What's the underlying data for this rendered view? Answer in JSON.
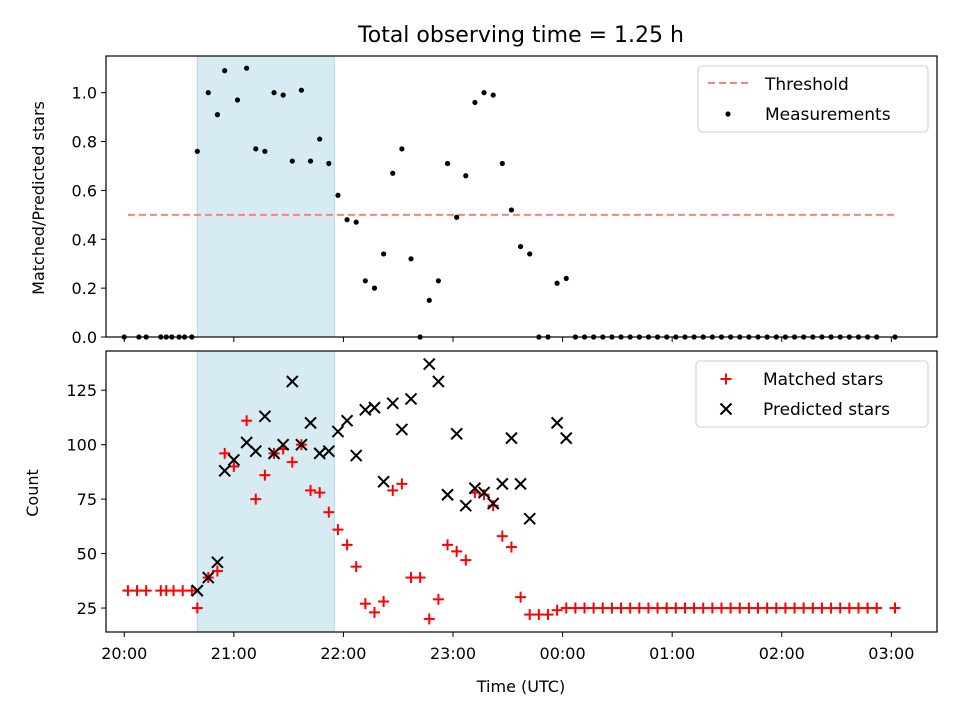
{
  "chart_data": [
    {
      "type": "scatter",
      "title": "Total observing time = 1.25 h",
      "xlabel": "",
      "ylabel": "Matched/Predicted stars",
      "xlim": [
        "19:50",
        "03:25"
      ],
      "ylim": [
        0,
        1.15
      ],
      "yticks": [
        "0.0",
        "0.2",
        "0.4",
        "0.6",
        "0.8",
        "1.0"
      ],
      "shaded_interval": {
        "start": "20:40",
        "end": "21:55",
        "color": "#add8e6"
      },
      "legend": {
        "position": "top-right",
        "entries": [
          "Threshold",
          "Measurements"
        ]
      },
      "threshold": {
        "name": "Threshold",
        "value": 0.5,
        "x_start": "20:02",
        "x_end": "03:02",
        "color": "#ff7f7f"
      },
      "series": [
        {
          "name": "Measurements",
          "color": "#000000",
          "marker": "dot",
          "points": [
            [
              "20:00",
              0
            ],
            [
              "20:08",
              0
            ],
            [
              "20:12",
              0
            ],
            [
              "20:20",
              0
            ],
            [
              "20:23",
              0
            ],
            [
              "20:26",
              0
            ],
            [
              "20:30",
              0
            ],
            [
              "20:33",
              0
            ],
            [
              "20:37",
              0
            ],
            [
              "20:40",
              0.76
            ],
            [
              "20:46",
              1.0
            ],
            [
              "20:51",
              0.91
            ],
            [
              "20:55",
              1.09
            ],
            [
              "21:02",
              0.97
            ],
            [
              "21:07",
              1.1
            ],
            [
              "21:12",
              0.77
            ],
            [
              "21:17",
              0.76
            ],
            [
              "21:22",
              1.0
            ],
            [
              "21:27",
              0.99
            ],
            [
              "21:32",
              0.72
            ],
            [
              "21:37",
              1.01
            ],
            [
              "21:42",
              0.72
            ],
            [
              "21:47",
              0.81
            ],
            [
              "21:52",
              0.71
            ],
            [
              "21:57",
              0.58
            ],
            [
              "22:02",
              0.48
            ],
            [
              "22:07",
              0.47
            ],
            [
              "22:12",
              0.23
            ],
            [
              "22:17",
              0.2
            ],
            [
              "22:22",
              0.34
            ],
            [
              "22:27",
              0.67
            ],
            [
              "22:32",
              0.77
            ],
            [
              "22:37",
              0.32
            ],
            [
              "22:42",
              0.0
            ],
            [
              "22:47",
              0.15
            ],
            [
              "22:52",
              0.23
            ],
            [
              "22:57",
              0.71
            ],
            [
              "23:02",
              0.49
            ],
            [
              "23:07",
              0.66
            ],
            [
              "23:12",
              0.96
            ],
            [
              "23:17",
              1.0
            ],
            [
              "23:22",
              0.99
            ],
            [
              "23:27",
              0.71
            ],
            [
              "23:32",
              0.52
            ],
            [
              "23:37",
              0.37
            ],
            [
              "23:42",
              0.34
            ],
            [
              "23:47",
              0.0
            ],
            [
              "23:52",
              0.0
            ],
            [
              "23:57",
              0.22
            ],
            [
              "00:02",
              0.24
            ],
            [
              "00:07",
              0
            ],
            [
              "00:12",
              0
            ],
            [
              "00:17",
              0
            ],
            [
              "00:22",
              0
            ],
            [
              "00:27",
              0
            ],
            [
              "00:32",
              0
            ],
            [
              "00:37",
              0
            ],
            [
              "00:42",
              0
            ],
            [
              "00:47",
              0
            ],
            [
              "00:52",
              0
            ],
            [
              "00:57",
              0
            ],
            [
              "01:02",
              0
            ],
            [
              "01:07",
              0
            ],
            [
              "01:12",
              0
            ],
            [
              "01:17",
              0
            ],
            [
              "01:22",
              0
            ],
            [
              "01:27",
              0
            ],
            [
              "01:32",
              0
            ],
            [
              "01:37",
              0
            ],
            [
              "01:42",
              0
            ],
            [
              "01:47",
              0
            ],
            [
              "01:52",
              0
            ],
            [
              "01:57",
              0
            ],
            [
              "02:02",
              0
            ],
            [
              "02:07",
              0
            ],
            [
              "02:12",
              0
            ],
            [
              "02:17",
              0
            ],
            [
              "02:22",
              0
            ],
            [
              "02:27",
              0
            ],
            [
              "02:32",
              0
            ],
            [
              "02:37",
              0
            ],
            [
              "02:42",
              0
            ],
            [
              "02:47",
              0
            ],
            [
              "02:52",
              0
            ],
            [
              "03:02",
              0
            ]
          ]
        }
      ]
    },
    {
      "type": "scatter",
      "title": "",
      "xlabel": "Time (UTC)",
      "ylabel": "Count",
      "xlim": [
        "19:50",
        "03:25"
      ],
      "ylim": [
        14,
        143
      ],
      "xticks": [
        "20:00",
        "21:00",
        "22:00",
        "23:00",
        "00:00",
        "01:00",
        "02:00",
        "03:00"
      ],
      "yticks": [
        "25",
        "50",
        "75",
        "100",
        "125"
      ],
      "shaded_interval": {
        "start": "20:40",
        "end": "21:55",
        "color": "#add8e6"
      },
      "legend": {
        "position": "top-right",
        "entries": [
          "Matched stars",
          "Predicted stars"
        ]
      },
      "series": [
        {
          "name": "Matched stars",
          "color": "#ff0000",
          "marker": "plus",
          "points": [
            [
              "20:02",
              33
            ],
            [
              "20:07",
              33
            ],
            [
              "20:12",
              33
            ],
            [
              "20:20",
              33
            ],
            [
              "20:23",
              33
            ],
            [
              "20:27",
              33
            ],
            [
              "20:32",
              33
            ],
            [
              "20:37",
              33
            ],
            [
              "20:40",
              25
            ],
            [
              "20:46",
              39
            ],
            [
              "20:51",
              42
            ],
            [
              "20:55",
              96
            ],
            [
              "21:00",
              90
            ],
            [
              "21:07",
              111
            ],
            [
              "21:12",
              75
            ],
            [
              "21:17",
              86
            ],
            [
              "21:22",
              96
            ],
            [
              "21:27",
              98
            ],
            [
              "21:32",
              92
            ],
            [
              "21:37",
              100
            ],
            [
              "21:42",
              79
            ],
            [
              "21:47",
              78
            ],
            [
              "21:52",
              69
            ],
            [
              "21:57",
              61
            ],
            [
              "22:02",
              54
            ],
            [
              "22:07",
              44
            ],
            [
              "22:12",
              27
            ],
            [
              "22:17",
              23
            ],
            [
              "22:22",
              28
            ],
            [
              "22:27",
              79
            ],
            [
              "22:32",
              82
            ],
            [
              "22:37",
              39
            ],
            [
              "22:42",
              39
            ],
            [
              "22:47",
              20
            ],
            [
              "22:52",
              29
            ],
            [
              "22:57",
              54
            ],
            [
              "23:02",
              51
            ],
            [
              "23:07",
              47
            ],
            [
              "23:12",
              78
            ],
            [
              "23:17",
              77
            ],
            [
              "23:22",
              72
            ],
            [
              "23:27",
              58
            ],
            [
              "23:32",
              53
            ],
            [
              "23:37",
              30
            ],
            [
              "23:42",
              22
            ],
            [
              "23:47",
              22
            ],
            [
              "23:52",
              22
            ],
            [
              "23:57",
              24
            ],
            [
              "00:02",
              25
            ],
            [
              "00:07",
              25
            ],
            [
              "00:12",
              25
            ],
            [
              "00:17",
              25
            ],
            [
              "00:22",
              25
            ],
            [
              "00:27",
              25
            ],
            [
              "00:32",
              25
            ],
            [
              "00:37",
              25
            ],
            [
              "00:42",
              25
            ],
            [
              "00:47",
              25
            ],
            [
              "00:52",
              25
            ],
            [
              "00:57",
              25
            ],
            [
              "01:02",
              25
            ],
            [
              "01:07",
              25
            ],
            [
              "01:12",
              25
            ],
            [
              "01:17",
              25
            ],
            [
              "01:22",
              25
            ],
            [
              "01:27",
              25
            ],
            [
              "01:32",
              25
            ],
            [
              "01:37",
              25
            ],
            [
              "01:42",
              25
            ],
            [
              "01:47",
              25
            ],
            [
              "01:52",
              25
            ],
            [
              "01:57",
              25
            ],
            [
              "02:02",
              25
            ],
            [
              "02:07",
              25
            ],
            [
              "02:12",
              25
            ],
            [
              "02:17",
              25
            ],
            [
              "02:22",
              25
            ],
            [
              "02:27",
              25
            ],
            [
              "02:32",
              25
            ],
            [
              "02:37",
              25
            ],
            [
              "02:42",
              25
            ],
            [
              "02:47",
              25
            ],
            [
              "02:52",
              25
            ],
            [
              "03:02",
              25
            ]
          ]
        },
        {
          "name": "Predicted stars",
          "color": "#000000",
          "marker": "x",
          "points": [
            [
              "20:40",
              33
            ],
            [
              "20:46",
              39
            ],
            [
              "20:51",
              46
            ],
            [
              "20:55",
              88
            ],
            [
              "21:00",
              93
            ],
            [
              "21:07",
              101
            ],
            [
              "21:12",
              97
            ],
            [
              "21:17",
              113
            ],
            [
              "21:22",
              96
            ],
            [
              "21:27",
              100
            ],
            [
              "21:32",
              129
            ],
            [
              "21:37",
              100
            ],
            [
              "21:42",
              110
            ],
            [
              "21:47",
              96
            ],
            [
              "21:52",
              97
            ],
            [
              "21:57",
              106
            ],
            [
              "22:02",
              111
            ],
            [
              "22:07",
              95
            ],
            [
              "22:12",
              116
            ],
            [
              "22:17",
              117
            ],
            [
              "22:22",
              83
            ],
            [
              "22:27",
              119
            ],
            [
              "22:32",
              107
            ],
            [
              "22:37",
              121
            ],
            [
              "22:47",
              137
            ],
            [
              "22:52",
              129
            ],
            [
              "22:57",
              77
            ],
            [
              "23:02",
              105
            ],
            [
              "23:07",
              72
            ],
            [
              "23:12",
              80
            ],
            [
              "23:17",
              78
            ],
            [
              "23:22",
              73
            ],
            [
              "23:27",
              82
            ],
            [
              "23:32",
              103
            ],
            [
              "23:37",
              82
            ],
            [
              "23:42",
              66
            ],
            [
              "23:57",
              110
            ],
            [
              "00:02",
              103
            ]
          ]
        }
      ]
    }
  ]
}
